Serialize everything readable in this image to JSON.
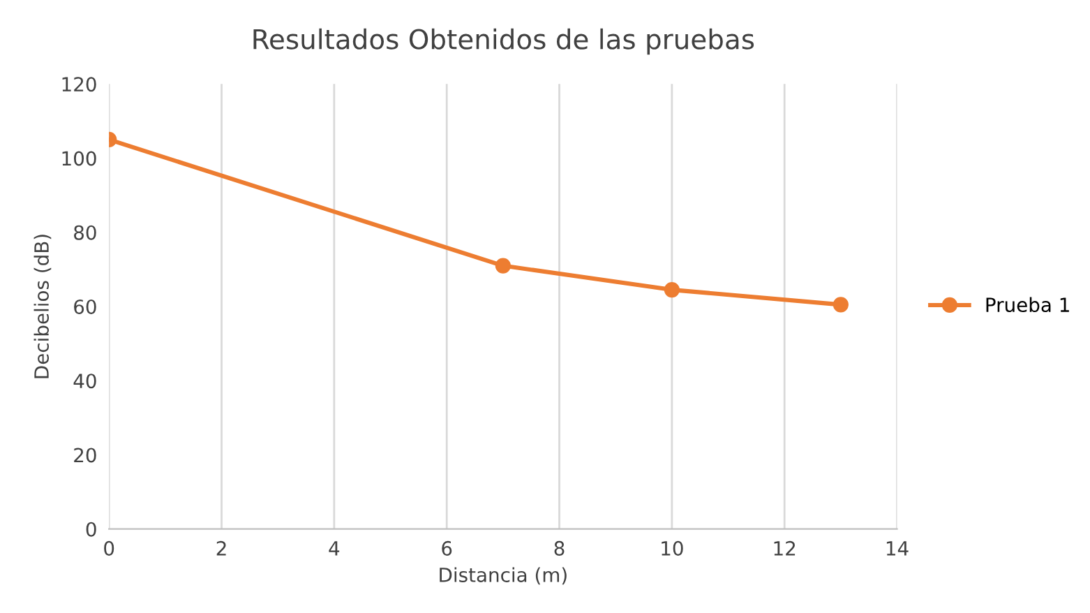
{
  "chart_data": {
    "type": "line",
    "title": "Resultados Obtenidos de las pruebas",
    "xlabel": "Distancia (m)",
    "ylabel": "Decibelios (dB)",
    "x": [
      0,
      7,
      10,
      13
    ],
    "series": [
      {
        "name": "Prueba 1",
        "color": "#ed7d31",
        "values": [
          105,
          71,
          64.5,
          60.5
        ]
      }
    ],
    "xlim": [
      0,
      14
    ],
    "xticks": [
      0,
      2,
      4,
      6,
      8,
      10,
      12,
      14
    ],
    "ylim": [
      0,
      120
    ],
    "yticks": [
      0,
      20,
      40,
      60,
      80,
      100,
      120
    ],
    "grid": "x",
    "legend": "right",
    "marker": "circle",
    "line_style": "solid"
  }
}
